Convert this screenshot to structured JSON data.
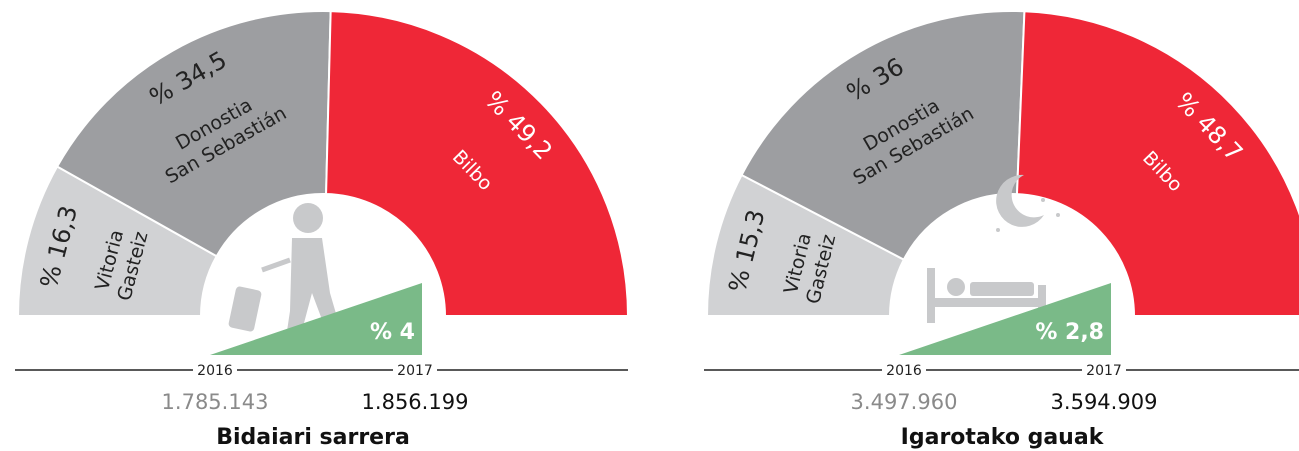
{
  "chart_data": [
    {
      "type": "pie",
      "title": "Bidaiari sarrera",
      "categories": [
        [
          "Vitoria",
          "Gasteiz"
        ],
        [
          "Donostia",
          "San Sebastián"
        ],
        [
          "Bilbo"
        ]
      ],
      "values": [
        16.3,
        34.5,
        49.2
      ],
      "value_labels": [
        "% 16,3",
        "% 34,5",
        "% 49,2"
      ],
      "colors": [
        "#d1d2d4",
        "#9d9ea1",
        "#ef2737"
      ],
      "years": [
        2016,
        2017
      ],
      "totals": [
        1785143,
        1856199
      ],
      "total_labels": [
        "1.785.143",
        "1.856.199"
      ],
      "change": 4,
      "change_label": "% 4"
    },
    {
      "type": "pie",
      "title": "Igarotako gauak",
      "categories": [
        [
          "Vitoria",
          "Gasteiz"
        ],
        [
          "Donostia",
          "San Sebastián"
        ],
        [
          "Bilbo"
        ]
      ],
      "values": [
        15.3,
        36,
        48.7
      ],
      "value_labels": [
        "% 15,3",
        "% 36",
        "% 48,7"
      ],
      "colors": [
        "#d1d2d4",
        "#9d9ea1",
        "#ef2737"
      ],
      "years": [
        2016,
        2017
      ],
      "totals": [
        3497960,
        3594909
      ],
      "total_labels": [
        "3.497.960",
        "3.594.909"
      ],
      "change": 2.8,
      "change_label": "% 2,8"
    }
  ]
}
